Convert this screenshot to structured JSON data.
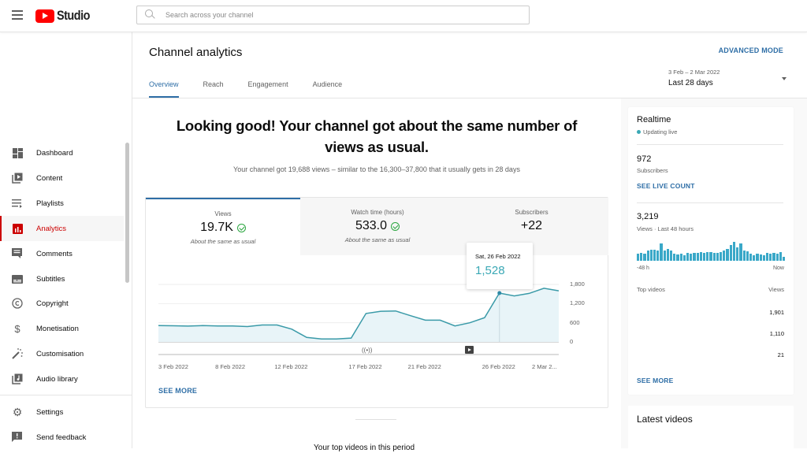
{
  "topbar": {
    "logo_text": "Studio",
    "search_placeholder": "Search across your channel"
  },
  "sidebar": {
    "items": [
      {
        "label": "Dashboard",
        "icon": "dashboard-icon"
      },
      {
        "label": "Content",
        "icon": "content-icon"
      },
      {
        "label": "Playlists",
        "icon": "playlists-icon"
      },
      {
        "label": "Analytics",
        "icon": "analytics-icon",
        "active": true
      },
      {
        "label": "Comments",
        "icon": "comments-icon"
      },
      {
        "label": "Subtitles",
        "icon": "subtitles-icon"
      },
      {
        "label": "Copyright",
        "icon": "copyright-icon"
      },
      {
        "label": "Monetisation",
        "icon": "dollar-icon"
      },
      {
        "label": "Customisation",
        "icon": "magic-wand-icon"
      },
      {
        "label": "Audio library",
        "icon": "audio-library-icon"
      }
    ],
    "footer_items": [
      {
        "label": "Settings",
        "icon": "gear-icon"
      },
      {
        "label": "Send feedback",
        "icon": "feedback-icon"
      }
    ]
  },
  "header": {
    "title": "Channel analytics",
    "advanced_mode": "ADVANCED MODE",
    "tabs": [
      {
        "label": "Overview",
        "active": true
      },
      {
        "label": "Reach"
      },
      {
        "label": "Engagement"
      },
      {
        "label": "Audience"
      }
    ],
    "date_range": {
      "dates": "3 Feb – 2 Mar 2022",
      "label": "Last 28 days"
    }
  },
  "overview": {
    "headline": "Looking good! Your channel got about the same number of views as usual.",
    "subline": "Your channel got 19,688 views – similar to the 16,300–37,800 that it usually gets in 28 days",
    "metrics": [
      {
        "label": "Views",
        "value": "19.7K",
        "note": "About the same as usual",
        "check": true
      },
      {
        "label": "Watch time (hours)",
        "value": "533.0",
        "note": "About the same as usual",
        "check": true
      },
      {
        "label": "Subscribers",
        "value": "+22",
        "note": "",
        "check": false
      }
    ],
    "tooltip": {
      "date": "Sat, 26 Feb 2022",
      "value": "1,528"
    },
    "see_more": "SEE MORE",
    "bottom_text": "Your top videos in this period"
  },
  "chart_data": {
    "type": "area",
    "title": "Views",
    "xlabel": "",
    "ylabel": "Views",
    "ylim": [
      0,
      1800
    ],
    "y_ticks": [
      "1,800",
      "1,200",
      "600",
      "0"
    ],
    "x_tick_labels": [
      "3 Feb 2022",
      "8 Feb 2022",
      "12 Feb 2022",
      "17 Feb 2022",
      "21 Feb 2022",
      "26 Feb 2022",
      "2 Mar 2..."
    ],
    "x": [
      "3 Feb",
      "4 Feb",
      "5 Feb",
      "6 Feb",
      "7 Feb",
      "8 Feb",
      "9 Feb",
      "10 Feb",
      "11 Feb",
      "12 Feb",
      "13 Feb",
      "14 Feb",
      "15 Feb",
      "16 Feb",
      "17 Feb",
      "18 Feb",
      "19 Feb",
      "20 Feb",
      "21 Feb",
      "22 Feb",
      "23 Feb",
      "24 Feb",
      "25 Feb",
      "26 Feb",
      "27 Feb",
      "28 Feb",
      "1 Mar",
      "2 Mar"
    ],
    "values": [
      510,
      505,
      495,
      510,
      500,
      500,
      480,
      530,
      530,
      400,
      140,
      90,
      90,
      120,
      890,
      960,
      970,
      820,
      680,
      680,
      500,
      600,
      760,
      1528,
      1440,
      1520,
      1680,
      1600
    ],
    "series_color": "#3a9aa8",
    "highlight": {
      "x": "26 Feb",
      "value": 1528
    },
    "grid": true
  },
  "realtime": {
    "title": "Realtime",
    "status": "Updating live",
    "subscribers_value": "972",
    "subscribers_label": "Subscribers",
    "see_live_count": "SEE LIVE COUNT",
    "views_value": "3,219",
    "views_label": "Views · Last 48 hours",
    "axis_start": "-48 h",
    "axis_end": "Now",
    "bars": [
      8,
      9,
      8,
      12,
      13,
      13,
      12,
      20,
      12,
      14,
      12,
      8,
      7,
      8,
      6,
      9,
      8,
      9,
      9,
      10,
      9,
      10,
      10,
      9,
      9,
      10,
      12,
      14,
      18,
      22,
      16,
      20,
      12,
      11,
      8,
      6,
      8,
      7,
      6,
      9,
      8,
      9,
      8,
      10,
      5
    ],
    "top_videos_label": "Top videos",
    "views_col_label": "Views",
    "top_videos": [
      "1,901",
      "1,110",
      "21"
    ],
    "see_more": "SEE MORE"
  },
  "latest_videos": {
    "title": "Latest videos"
  }
}
